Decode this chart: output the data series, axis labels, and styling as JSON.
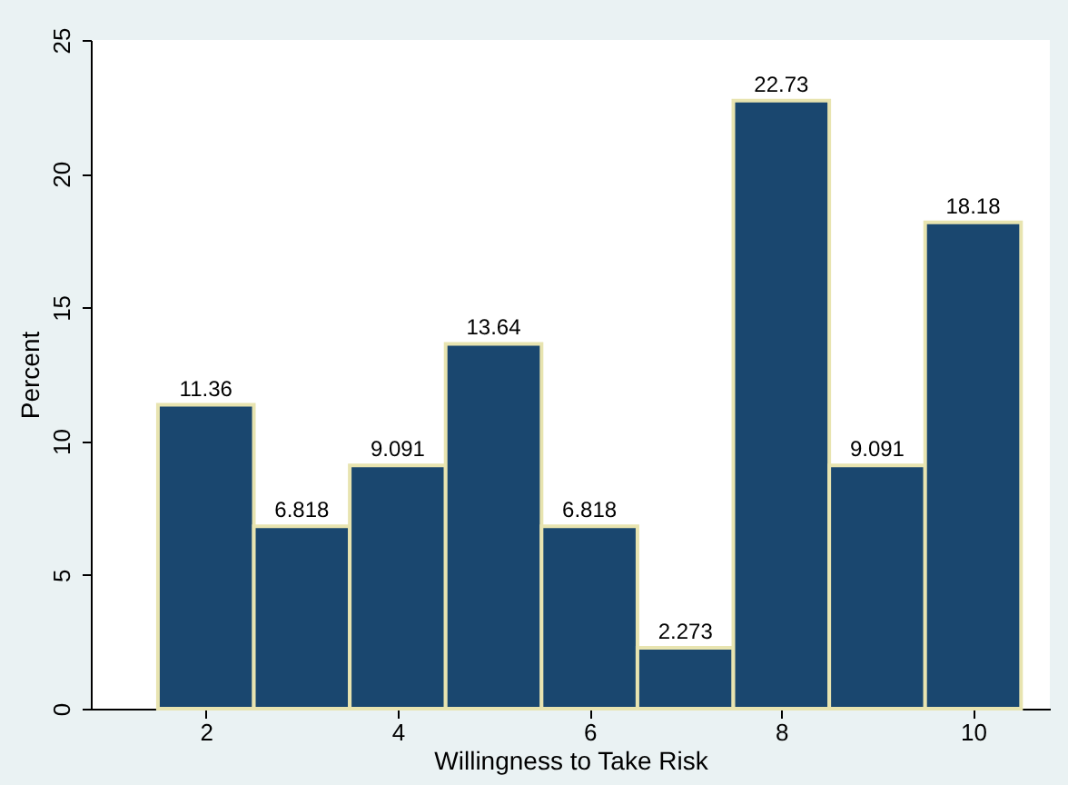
{
  "chart_data": {
    "type": "histogram",
    "xlabel": "Willingness to Take Risk",
    "ylabel": "Percent",
    "bins": [
      1.5,
      2.5,
      3.5,
      4.5,
      5.5,
      6.5,
      7.5,
      8.5,
      9.5,
      10.5
    ],
    "values": [
      11.36,
      6.818,
      9.091,
      13.64,
      6.818,
      2.273,
      22.73,
      9.091,
      18.18
    ],
    "color": "#1a476f",
    "xlim": [
      0.8,
      10.8
    ],
    "xticks": [
      2,
      4,
      6,
      8,
      10
    ],
    "ylim": [
      0,
      25
    ],
    "yticks": [
      0,
      5,
      10,
      15,
      20,
      25
    ],
    "data_labels": true,
    "grid": false
  }
}
